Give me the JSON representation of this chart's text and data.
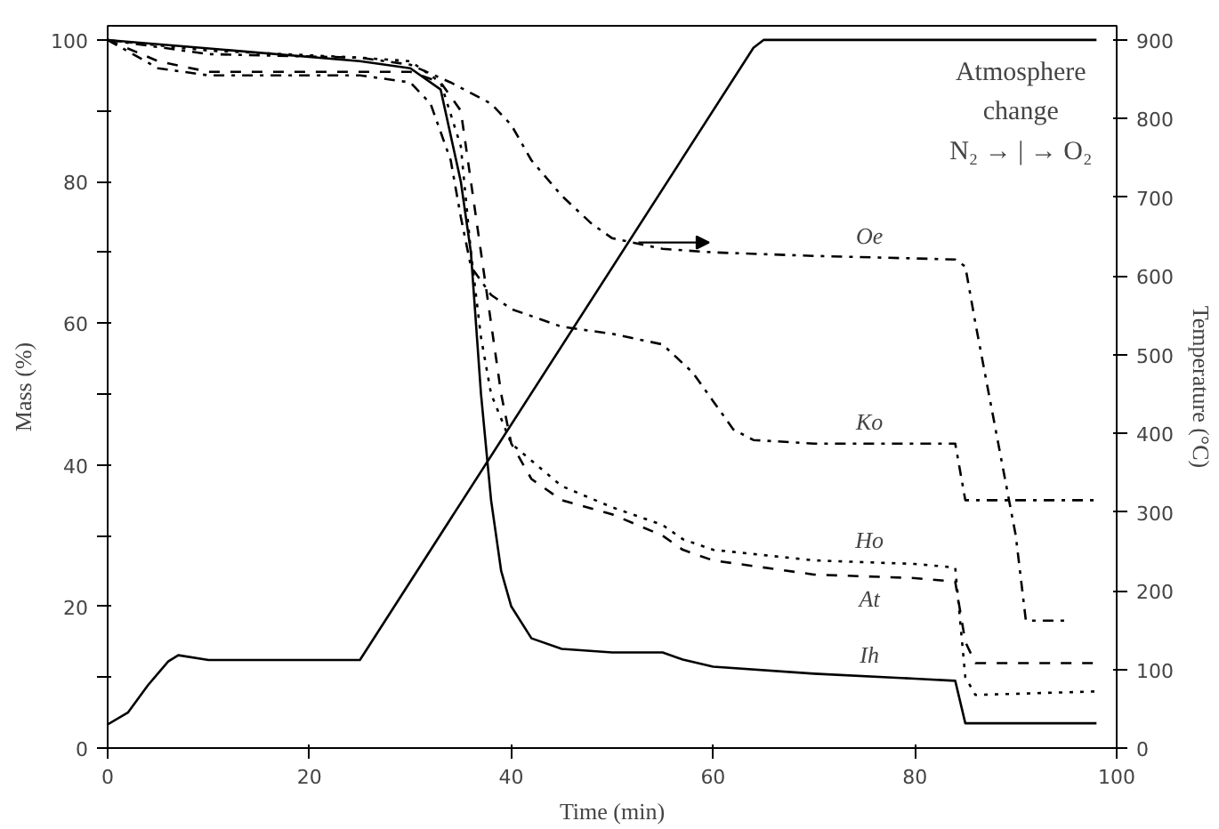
{
  "chart_data": {
    "type": "line",
    "xlabel": "Time (min)",
    "ylabel": "Mass (%)",
    "y2label": "Temperature (°C)",
    "xlim": [
      0,
      100
    ],
    "ylim": [
      0,
      102
    ],
    "y2lim": [
      0,
      918
    ],
    "xticks": [
      0,
      20,
      40,
      60,
      80,
      100
    ],
    "yticks": [
      0,
      {
        "value": 10,
        "label": null
      },
      20,
      {
        "value": 30,
        "label": null
      },
      40,
      {
        "value": 50,
        "label": null
      },
      60,
      {
        "value": 70,
        "label": null
      },
      80,
      {
        "value": 90,
        "label": null
      },
      100
    ],
    "y2ticks": [
      0,
      100,
      200,
      300,
      400,
      500,
      600,
      700,
      800,
      900
    ],
    "grid": false,
    "marker": "none",
    "annotations": [
      "Atmosphere",
      "change",
      "N₂ → | → O₂"
    ],
    "series": [
      {
        "name": "Oe",
        "color": "#000000",
        "line_style": "dashdot",
        "x": [
          0,
          10,
          25,
          30,
          34,
          38,
          40,
          42,
          45,
          48,
          50,
          55,
          60,
          70,
          84,
          85,
          86,
          88,
          90,
          91,
          95
        ],
        "values": [
          100,
          98,
          97.5,
          96.5,
          94,
          91,
          88,
          83,
          78,
          74,
          72,
          70.5,
          70,
          69.5,
          69,
          68,
          60,
          45,
          30,
          18,
          18
        ]
      },
      {
        "name": "Ko",
        "color": "#000000",
        "line_style": "dashdot",
        "x": [
          0,
          5,
          10,
          25,
          30,
          32,
          34,
          35,
          36,
          38,
          40,
          45,
          50,
          55,
          58,
          60,
          62,
          64,
          70,
          84,
          85,
          98
        ],
        "values": [
          100,
          96,
          95,
          95,
          94,
          91,
          83,
          75,
          68,
          64,
          62,
          59.5,
          58.5,
          57,
          53,
          49,
          45,
          43.5,
          43,
          43,
          35,
          35
        ]
      },
      {
        "name": "Ho",
        "color": "#000000",
        "line_style": "dotted",
        "x": [
          0,
          10,
          25,
          30,
          33,
          35,
          36,
          37,
          38,
          40,
          45,
          50,
          55,
          57,
          60,
          70,
          80,
          84,
          85,
          86,
          98
        ],
        "values": [
          100,
          98.5,
          97.5,
          97,
          94,
          85,
          70,
          58,
          50,
          43,
          37,
          34,
          31.5,
          29.5,
          28,
          26.5,
          26,
          25.5,
          10,
          7.5,
          8
        ]
      },
      {
        "name": "At",
        "color": "#000000",
        "line_style": "dashed",
        "x": [
          0,
          5,
          10,
          25,
          30,
          33,
          35,
          36,
          38,
          39,
          40,
          42,
          45,
          50,
          55,
          57,
          60,
          70,
          80,
          84,
          85,
          86,
          98
        ],
        "values": [
          100,
          97,
          95.5,
          95.5,
          95.5,
          94,
          90,
          80,
          60,
          50,
          43,
          38,
          35,
          33,
          30,
          28,
          26.5,
          24.5,
          24,
          23.5,
          15,
          12,
          12
        ]
      },
      {
        "name": "Ih",
        "color": "#000000",
        "line_style": "solid",
        "x": [
          0,
          25,
          30,
          33,
          35,
          36,
          37,
          38,
          39,
          40,
          42,
          45,
          50,
          55,
          57,
          60,
          70,
          80,
          84,
          85,
          98
        ],
        "values": [
          100,
          97,
          96,
          93,
          80,
          70,
          50,
          35,
          25,
          20,
          15.5,
          14,
          13.5,
          13.5,
          12.5,
          11.5,
          10.5,
          9.8,
          9.5,
          3.5,
          3.5
        ]
      },
      {
        "axis": "y2",
        "color": "#000000",
        "line_style": "solid",
        "x": [
          0,
          2,
          4,
          6,
          7,
          10,
          25,
          64,
          65,
          98
        ],
        "values": [
          30,
          45,
          80,
          110,
          118,
          112,
          112,
          890,
          900,
          900
        ]
      }
    ]
  }
}
